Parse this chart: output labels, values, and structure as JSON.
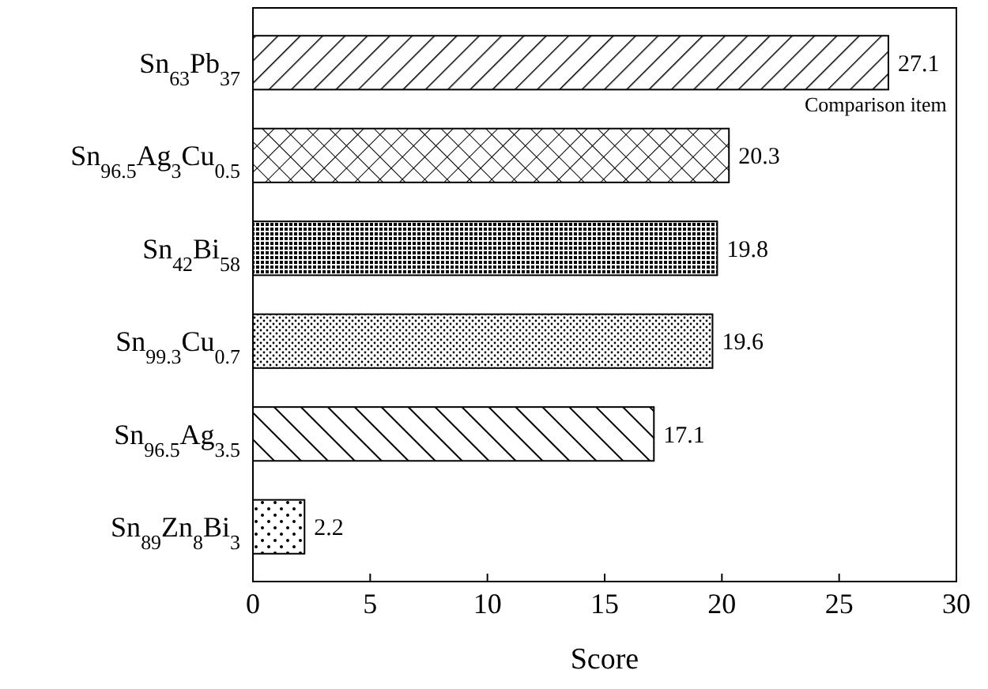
{
  "chart_data": {
    "type": "bar",
    "orientation": "horizontal",
    "xlabel": "Score",
    "categories": [
      "Sn$_{63}$Pb$_{37}$",
      "Sn$_{96.5}$Ag$_{3}$Cu$_{0.5}$",
      "Sn$_{42}$Bi$_{58}$",
      "Sn$_{99.3}$Cu$_{0.7}$",
      "Sn$_{96.5}$Ag$_{3.5}$",
      "Sn$_{89}$Zn$_{8}$Bi$_{3}$"
    ],
    "values": [
      27.1,
      20.3,
      19.8,
      19.6,
      17.1,
      2.2
    ],
    "color": "#000000",
    "xlim": [
      0,
      30
    ],
    "xticks": [
      0,
      5,
      10,
      15,
      20,
      25,
      30
    ],
    "data_labels": true,
    "annotations": [
      {
        "text": "Comparison item",
        "x": 27.1,
        "y": "Sn$_{63}$Pb$_{37}$"
      }
    ]
  }
}
